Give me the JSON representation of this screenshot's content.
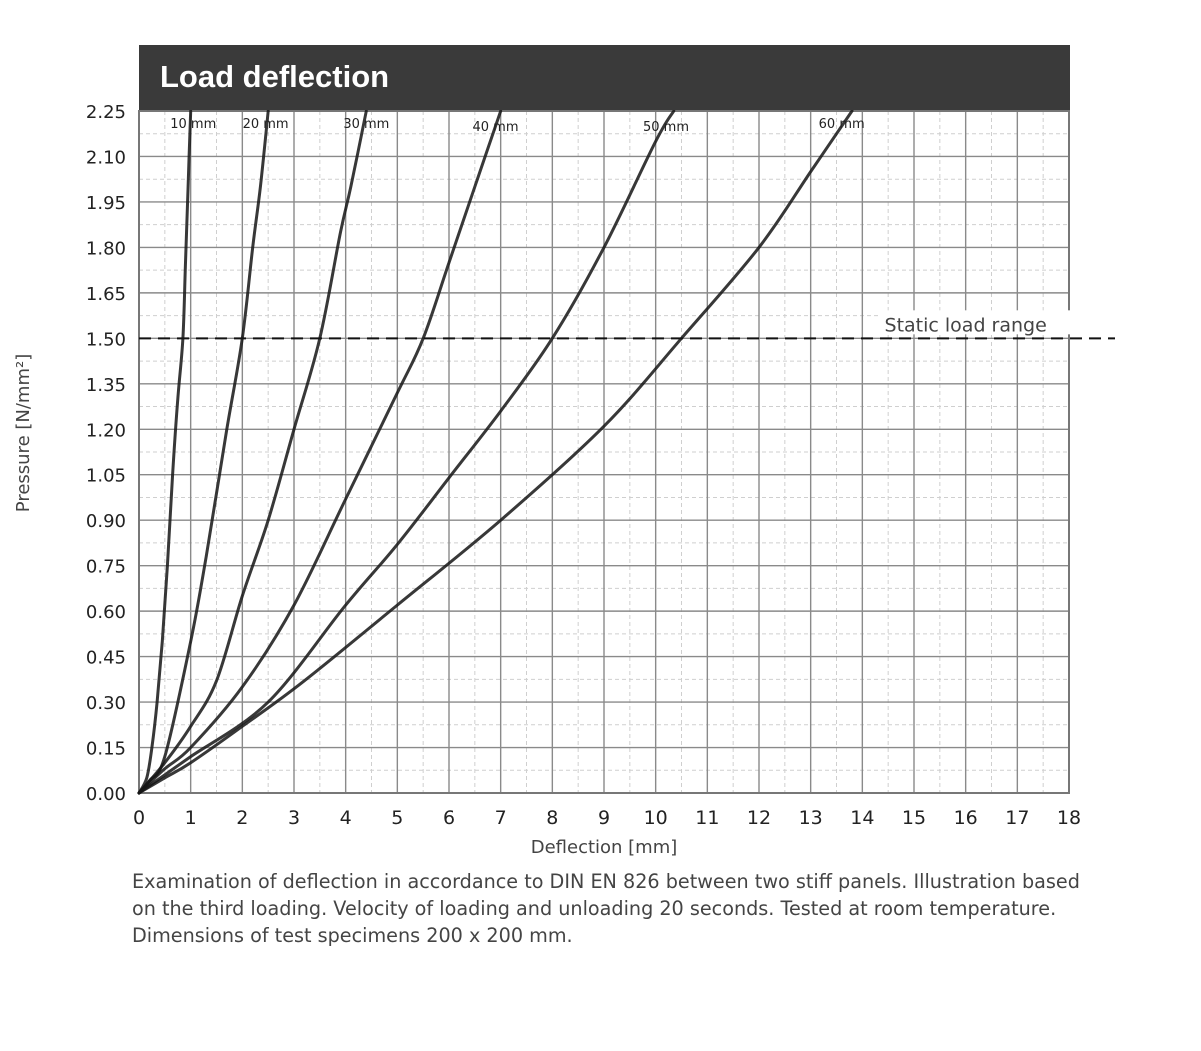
{
  "chart_data": {
    "type": "line",
    "title": "Load deflection",
    "xlabel": "Deflection [mm]",
    "ylabel": "Pressure [N/mm²]",
    "xlim": [
      0,
      18
    ],
    "ylim": [
      0,
      2.25
    ],
    "x_ticks": [
      "0",
      "1",
      "2",
      "3",
      "4",
      "5",
      "6",
      "7",
      "8",
      "9",
      "10",
      "11",
      "12",
      "13",
      "14",
      "15",
      "16",
      "17",
      "18"
    ],
    "y_ticks": [
      "0.00",
      "0.15",
      "0.30",
      "0.45",
      "0.60",
      "0.75",
      "0.90",
      "1.05",
      "1.20",
      "1.35",
      "1.50",
      "1.65",
      "1.80",
      "1.95",
      "2.10",
      "2.25"
    ],
    "grid": true,
    "series": [
      {
        "name": "10 mm",
        "label_at": [
          1.05,
          2.21
        ],
        "color": "#151515",
        "points": [
          [
            0,
            0
          ],
          [
            0.15,
            0.05
          ],
          [
            0.25,
            0.15
          ],
          [
            0.35,
            0.3
          ],
          [
            0.45,
            0.5
          ],
          [
            0.55,
            0.75
          ],
          [
            0.65,
            1.05
          ],
          [
            0.75,
            1.3
          ],
          [
            0.85,
            1.5
          ],
          [
            0.9,
            1.75
          ],
          [
            0.95,
            2.0
          ],
          [
            1.0,
            2.25
          ]
        ]
      },
      {
        "name": "20 mm",
        "label_at": [
          2.45,
          2.21
        ],
        "color": "#151515",
        "points": [
          [
            0,
            0
          ],
          [
            0.2,
            0.04
          ],
          [
            0.5,
            0.12
          ],
          [
            1.0,
            0.5
          ],
          [
            1.3,
            0.78
          ],
          [
            1.7,
            1.2
          ],
          [
            2.0,
            1.5
          ],
          [
            2.2,
            1.8
          ],
          [
            2.35,
            2.0
          ],
          [
            2.5,
            2.25
          ]
        ]
      },
      {
        "name": "30 mm",
        "label_at": [
          4.4,
          2.21
        ],
        "color": "#151515",
        "points": [
          [
            0,
            0
          ],
          [
            0.5,
            0.1
          ],
          [
            1.0,
            0.22
          ],
          [
            1.5,
            0.37
          ],
          [
            2.0,
            0.65
          ],
          [
            2.5,
            0.9
          ],
          [
            3.0,
            1.2
          ],
          [
            3.5,
            1.5
          ],
          [
            3.9,
            1.85
          ],
          [
            4.1,
            2.0
          ],
          [
            4.4,
            2.25
          ]
        ]
      },
      {
        "name": "40 mm",
        "label_at": [
          6.9,
          2.2
        ],
        "color": "#151515",
        "points": [
          [
            0,
            0
          ],
          [
            0.5,
            0.08
          ],
          [
            1.0,
            0.15
          ],
          [
            2.0,
            0.35
          ],
          [
            3.0,
            0.62
          ],
          [
            4.0,
            0.97
          ],
          [
            5.0,
            1.32
          ],
          [
            5.5,
            1.5
          ],
          [
            6.0,
            1.75
          ],
          [
            6.5,
            2.0
          ],
          [
            7.0,
            2.25
          ]
        ]
      },
      {
        "name": "50 mm",
        "label_at": [
          10.2,
          2.2
        ],
        "color": "#151515",
        "points": [
          [
            0,
            0
          ],
          [
            0.5,
            0.06
          ],
          [
            1.0,
            0.12
          ],
          [
            2.5,
            0.3
          ],
          [
            4.0,
            0.62
          ],
          [
            5.0,
            0.82
          ],
          [
            6.0,
            1.04
          ],
          [
            7.0,
            1.26
          ],
          [
            8.0,
            1.5
          ],
          [
            9.0,
            1.8
          ],
          [
            10.0,
            2.15
          ],
          [
            10.35,
            2.25
          ]
        ]
      },
      {
        "name": "60 mm",
        "label_at": [
          13.6,
          2.21
        ],
        "color": "#151515",
        "points": [
          [
            0,
            0
          ],
          [
            0.5,
            0.05
          ],
          [
            1.0,
            0.1
          ],
          [
            2.0,
            0.22
          ],
          [
            3.2,
            0.37
          ],
          [
            5.0,
            0.62
          ],
          [
            7.0,
            0.9
          ],
          [
            9.0,
            1.21
          ],
          [
            10.5,
            1.5
          ],
          [
            12.0,
            1.8
          ],
          [
            13.0,
            2.05
          ],
          [
            13.8,
            2.25
          ]
        ]
      }
    ],
    "annotations": [
      {
        "text": "Static load range",
        "y": 1.5,
        "x": 16.0,
        "style": "dashed"
      }
    ]
  },
  "caption": {
    "line1": "Examination of deflection in accordance to DIN EN 826 between two stiff panels. Illustration based",
    "line2": "on the third loading. Velocity of loading and unloading 20 seconds. Tested at room temperature.",
    "line3": "Dimensions of test specimens 200 x 200 mm."
  }
}
